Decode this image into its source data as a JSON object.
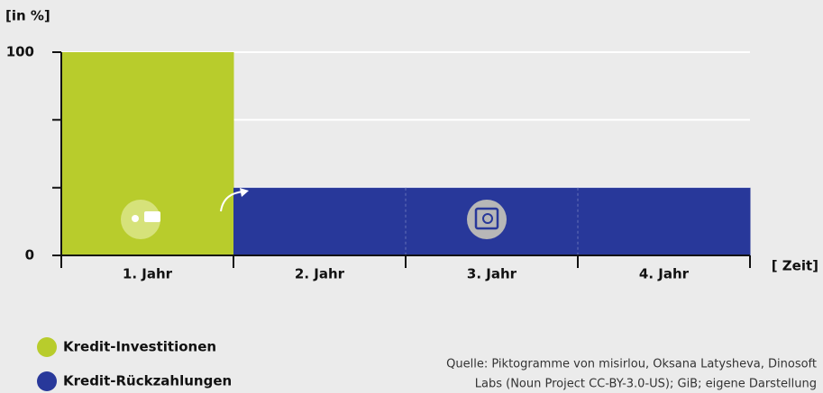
{
  "chart_data": {
    "type": "bar",
    "y_label": "[in %]",
    "x_label": "[ Zeit]",
    "categories": [
      "1. Jahr",
      "2. Jahr",
      "3. Jahr",
      "4. Jahr"
    ],
    "series": [
      {
        "name": "Kredit-Investitionen",
        "color": "#b8cc2c",
        "values": [
          100,
          null,
          null,
          null
        ]
      },
      {
        "name": "Kredit-Rückzahlungen",
        "color": "#28389a",
        "values": [
          null,
          33.3,
          33.3,
          33.3
        ]
      }
    ],
    "ylim": [
      0,
      100
    ],
    "yticks": [
      0,
      100
    ],
    "yminorticks": [
      33.3,
      66.7
    ],
    "grid": true,
    "legend": "bottom-left",
    "source": [
      "Quelle: Piktogramme von misirlou, Oksana Latysheva, Dinosoft",
      "Labs (Noun Project CC-BY-3.0-US); GiB; eigene Darstellung"
    ]
  }
}
